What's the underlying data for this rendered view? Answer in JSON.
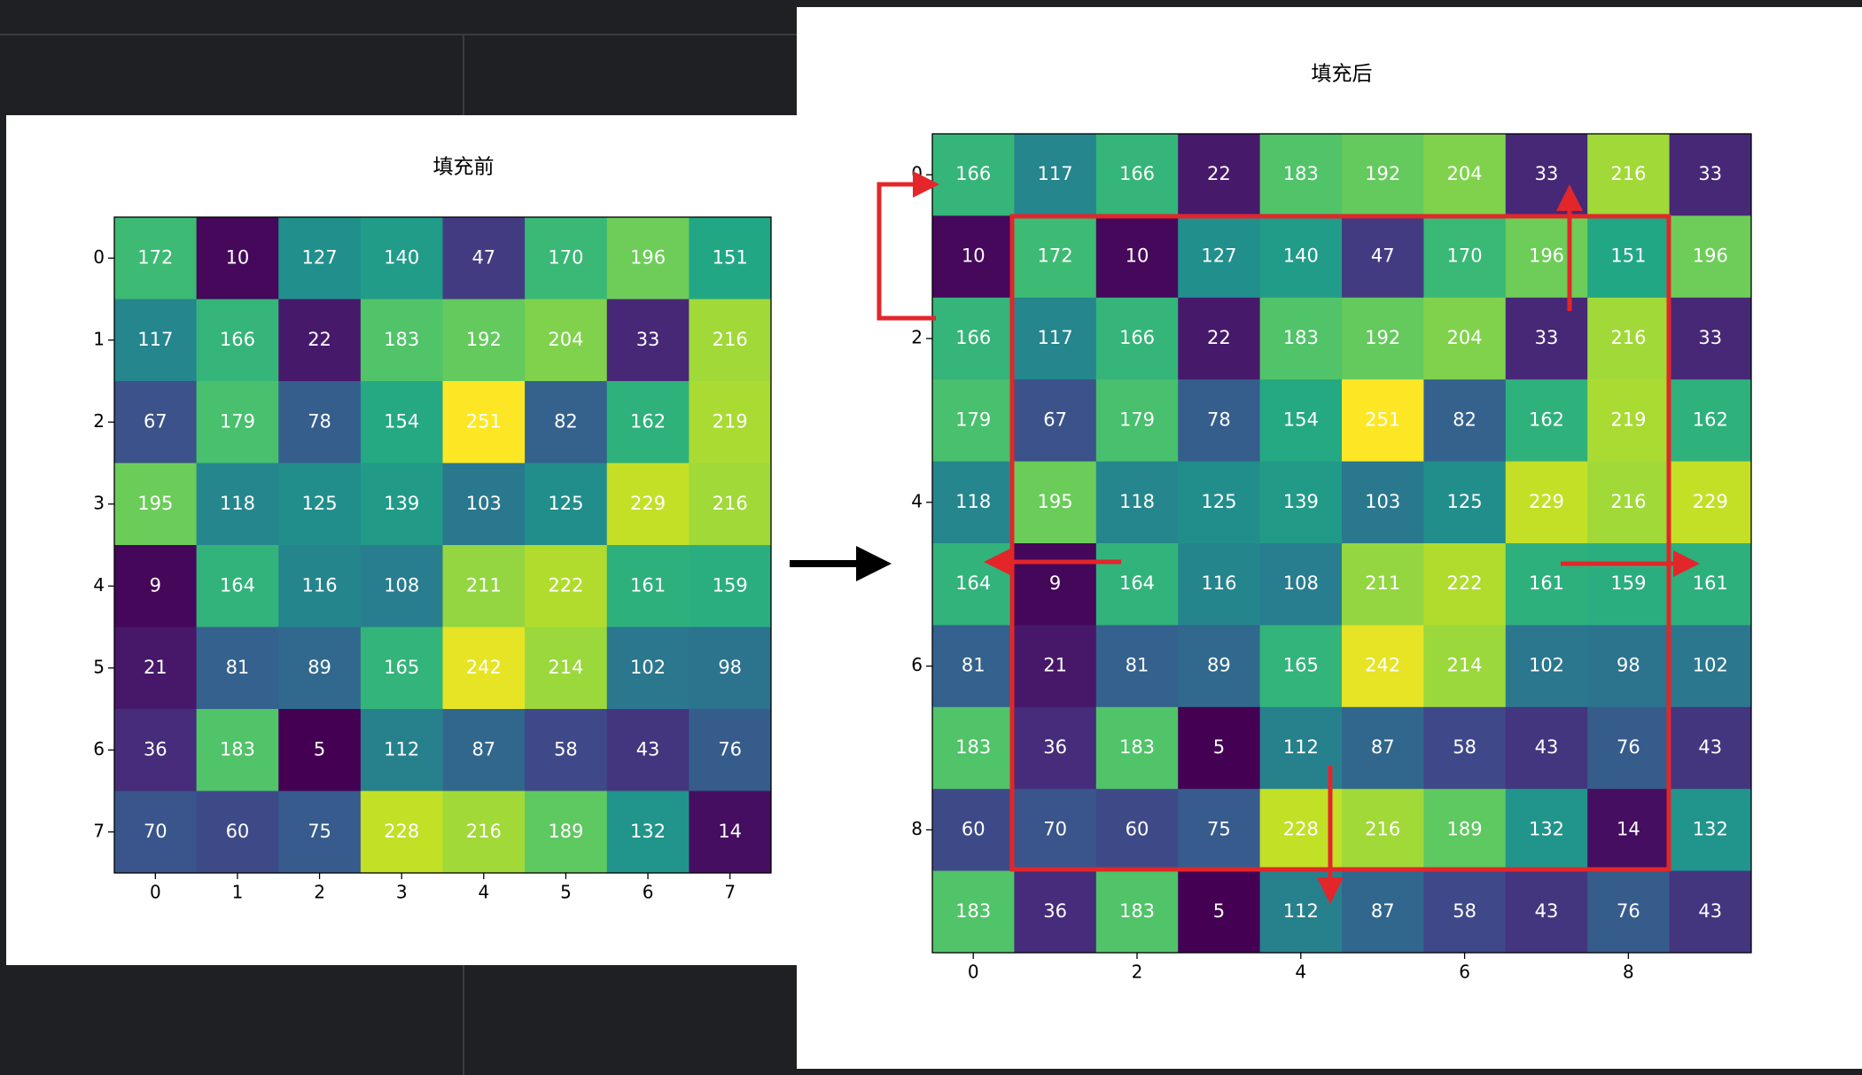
{
  "chart_data": [
    {
      "type": "heatmap",
      "title": "填充前",
      "colormap": "viridis",
      "values": [
        [
          172,
          10,
          127,
          140,
          47,
          170,
          196,
          151
        ],
        [
          117,
          166,
          22,
          183,
          192,
          204,
          33,
          216
        ],
        [
          67,
          179,
          78,
          154,
          251,
          82,
          162,
          219
        ],
        [
          195,
          118,
          125,
          139,
          103,
          125,
          229,
          216
        ],
        [
          9,
          164,
          116,
          108,
          211,
          222,
          161,
          159
        ],
        [
          21,
          81,
          89,
          165,
          242,
          214,
          102,
          98
        ],
        [
          36,
          183,
          5,
          112,
          87,
          58,
          43,
          76
        ],
        [
          70,
          60,
          75,
          228,
          216,
          189,
          132,
          14
        ]
      ],
      "xlim": [
        -0.5,
        7.5
      ],
      "ylim": [
        7.5,
        -0.5
      ],
      "xticks": [
        0,
        1,
        2,
        3,
        4,
        5,
        6,
        7
      ],
      "yticks": [
        0,
        1,
        2,
        3,
        4,
        5,
        6,
        7
      ]
    },
    {
      "type": "heatmap",
      "title": "填充后",
      "colormap": "viridis",
      "values": [
        [
          166,
          117,
          166,
          22,
          183,
          192,
          204,
          33,
          216,
          33
        ],
        [
          10,
          172,
          10,
          127,
          140,
          47,
          170,
          196,
          151,
          196
        ],
        [
          166,
          117,
          166,
          22,
          183,
          192,
          204,
          33,
          216,
          33
        ],
        [
          179,
          67,
          179,
          78,
          154,
          251,
          82,
          162,
          219,
          162
        ],
        [
          118,
          195,
          118,
          125,
          139,
          103,
          125,
          229,
          216,
          229
        ],
        [
          164,
          9,
          164,
          116,
          108,
          211,
          222,
          161,
          159,
          161
        ],
        [
          81,
          21,
          81,
          89,
          165,
          242,
          214,
          102,
          98,
          102
        ],
        [
          183,
          36,
          183,
          5,
          112,
          87,
          58,
          43,
          76,
          43
        ],
        [
          60,
          70,
          60,
          75,
          228,
          216,
          189,
          132,
          14,
          132
        ],
        [
          183,
          36,
          183,
          5,
          112,
          87,
          58,
          43,
          76,
          43
        ]
      ],
      "xlim": [
        -0.5,
        9.5
      ],
      "ylim": [
        9.5,
        -0.5
      ],
      "xticks": [
        0,
        2,
        4,
        6,
        8
      ],
      "yticks": [
        0,
        2,
        4,
        6,
        8
      ]
    }
  ]
}
